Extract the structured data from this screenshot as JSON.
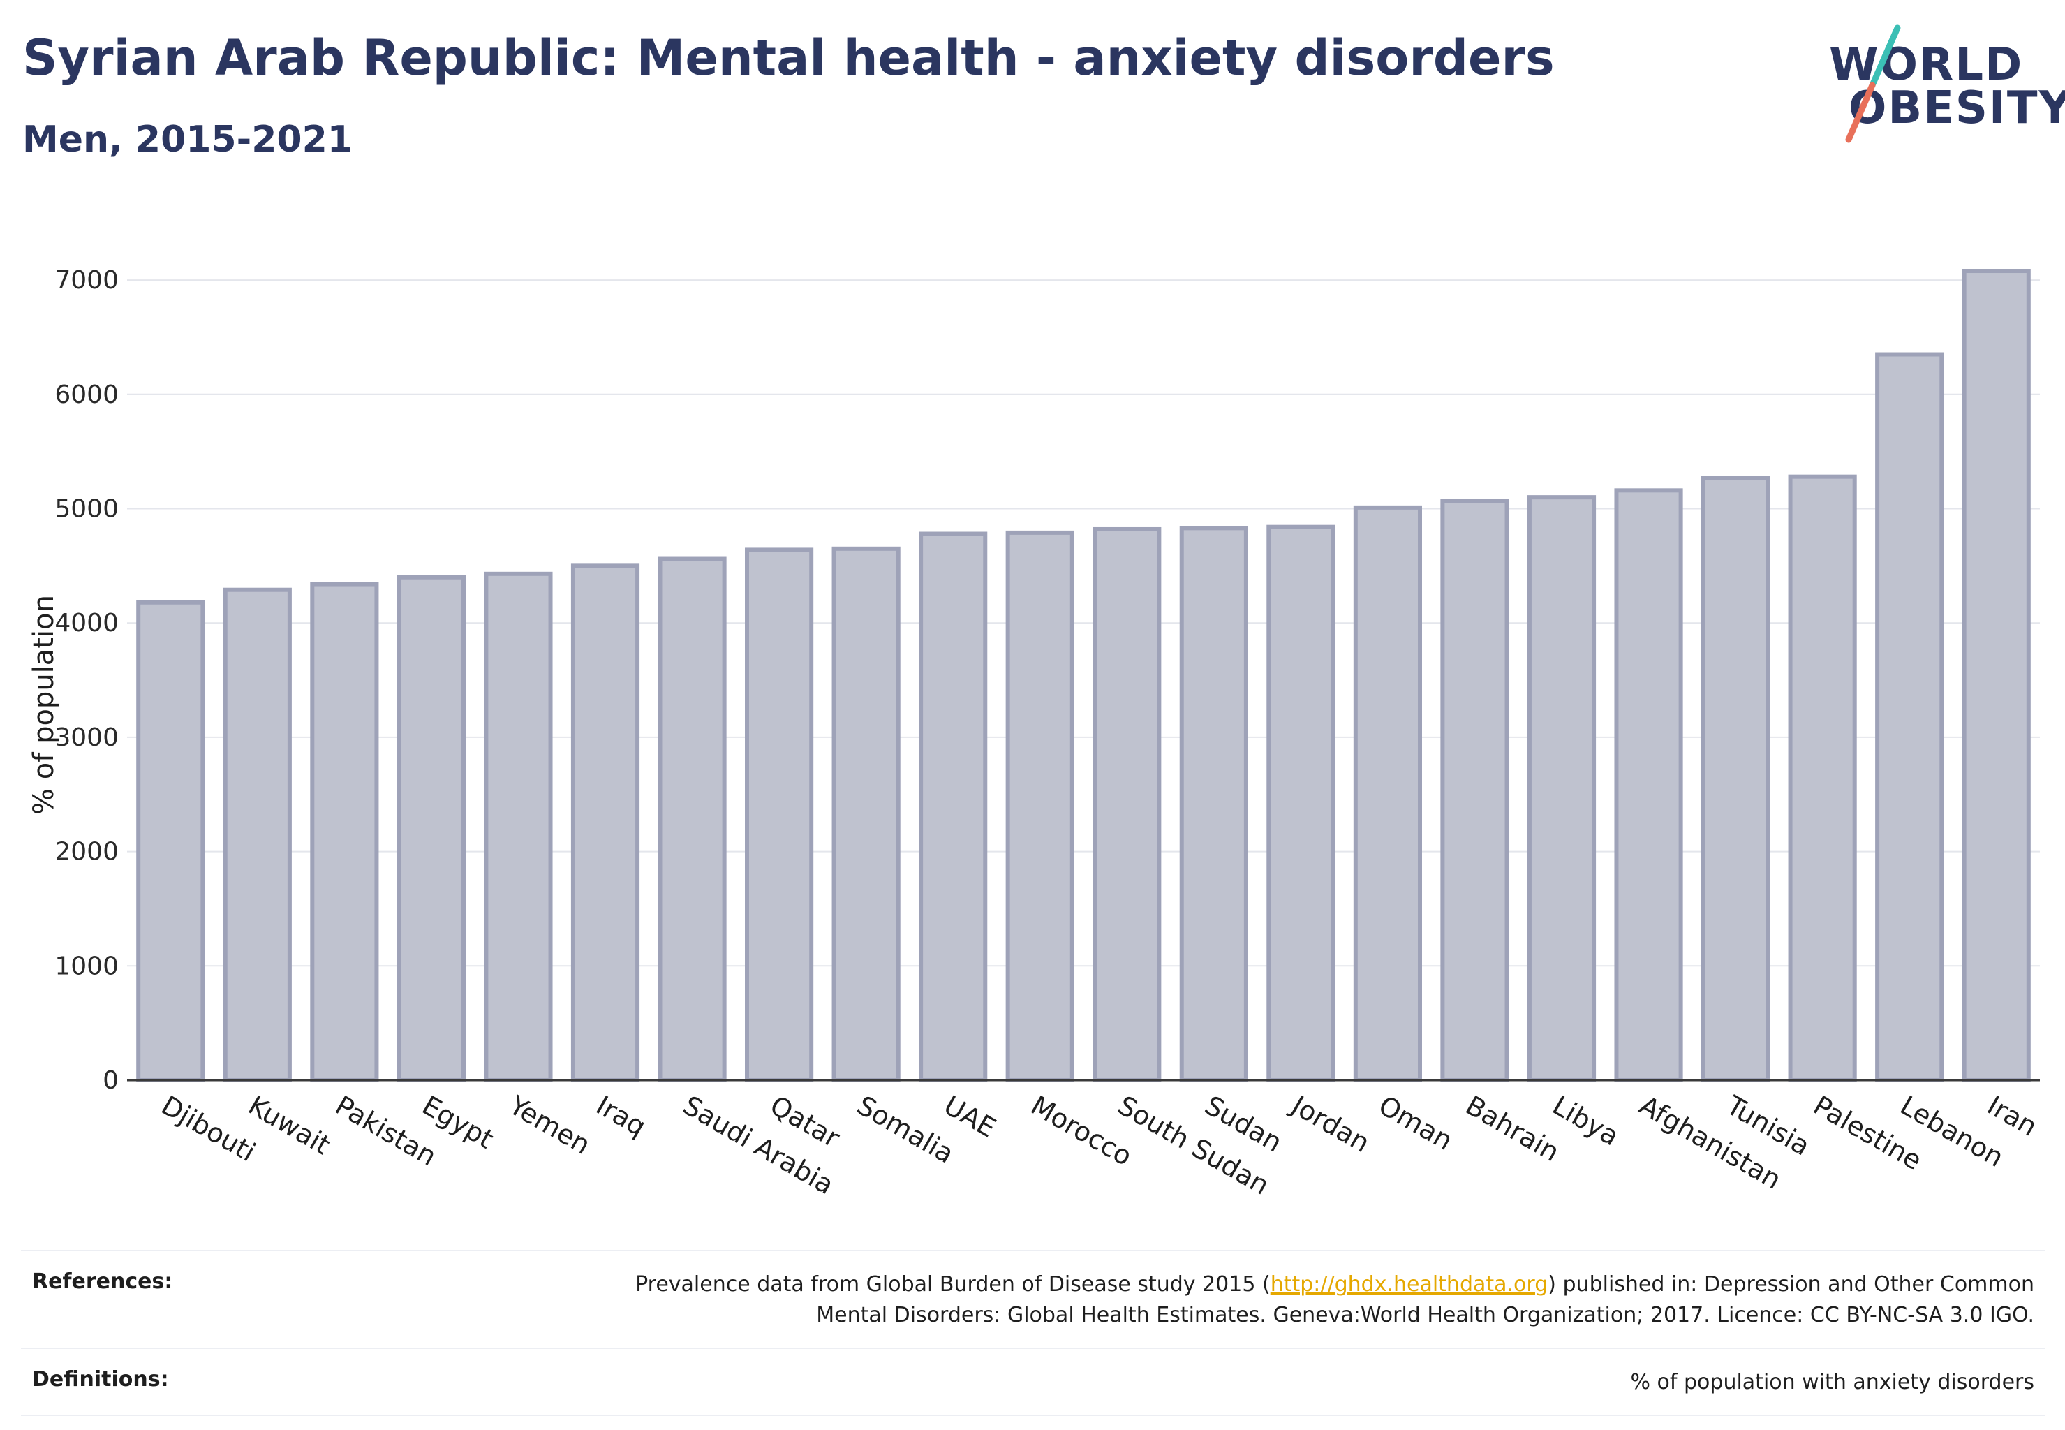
{
  "header": {
    "title": "Syrian Arab Republic: Mental health - anxiety disorders",
    "subtitle": "Men, 2015-2021"
  },
  "logo": {
    "line1": "WORLD",
    "line2": "OBESITY",
    "colors": {
      "text": "#2b3660",
      "slash_top": "#3bbfb5",
      "slash_bottom": "#e8705a"
    }
  },
  "chart_data": {
    "type": "bar",
    "title": "",
    "xlabel": "",
    "ylabel": "% of population",
    "ylim": [
      0,
      7300
    ],
    "yticks": [
      0,
      1000,
      2000,
      3000,
      4000,
      5000,
      6000,
      7000
    ],
    "grid": true,
    "categories": [
      "Djibouti",
      "Kuwait",
      "Pakistan",
      "Egypt",
      "Yemen",
      "Iraq",
      "Saudi Arabia",
      "Qatar",
      "Somalia",
      "UAE",
      "Morocco",
      "South Sudan",
      "Sudan",
      "Jordan",
      "Oman",
      "Bahrain",
      "Libya",
      "Afghanistan",
      "Tunisia",
      "Palestine",
      "Lebanon",
      "Iran"
    ],
    "values": [
      4180,
      4290,
      4340,
      4400,
      4430,
      4500,
      4560,
      4640,
      4650,
      4780,
      4790,
      4820,
      4830,
      4840,
      5010,
      5070,
      5100,
      5160,
      5270,
      5280,
      6350,
      7080
    ],
    "colors": {
      "bar_fill": "#bfc2cf",
      "bar_stroke": "#9ea2b8",
      "axis": "#3a3a3a",
      "grid": "#e4e6ec"
    }
  },
  "references": {
    "label": "References:",
    "text_before": "Prevalence data from Global Burden of Disease study 2015 (",
    "link": "http://ghdx.healthdata.org",
    "text_after": ") published in: Depression and Other Common",
    "line2": "Mental Disorders: Global Health Estimates. Geneva:World Health Organization; 2017. Licence: CC BY-NC-SA 3.0 IGO."
  },
  "definitions": {
    "label": "Definitions:",
    "text": "% of population with anxiety disorders"
  }
}
